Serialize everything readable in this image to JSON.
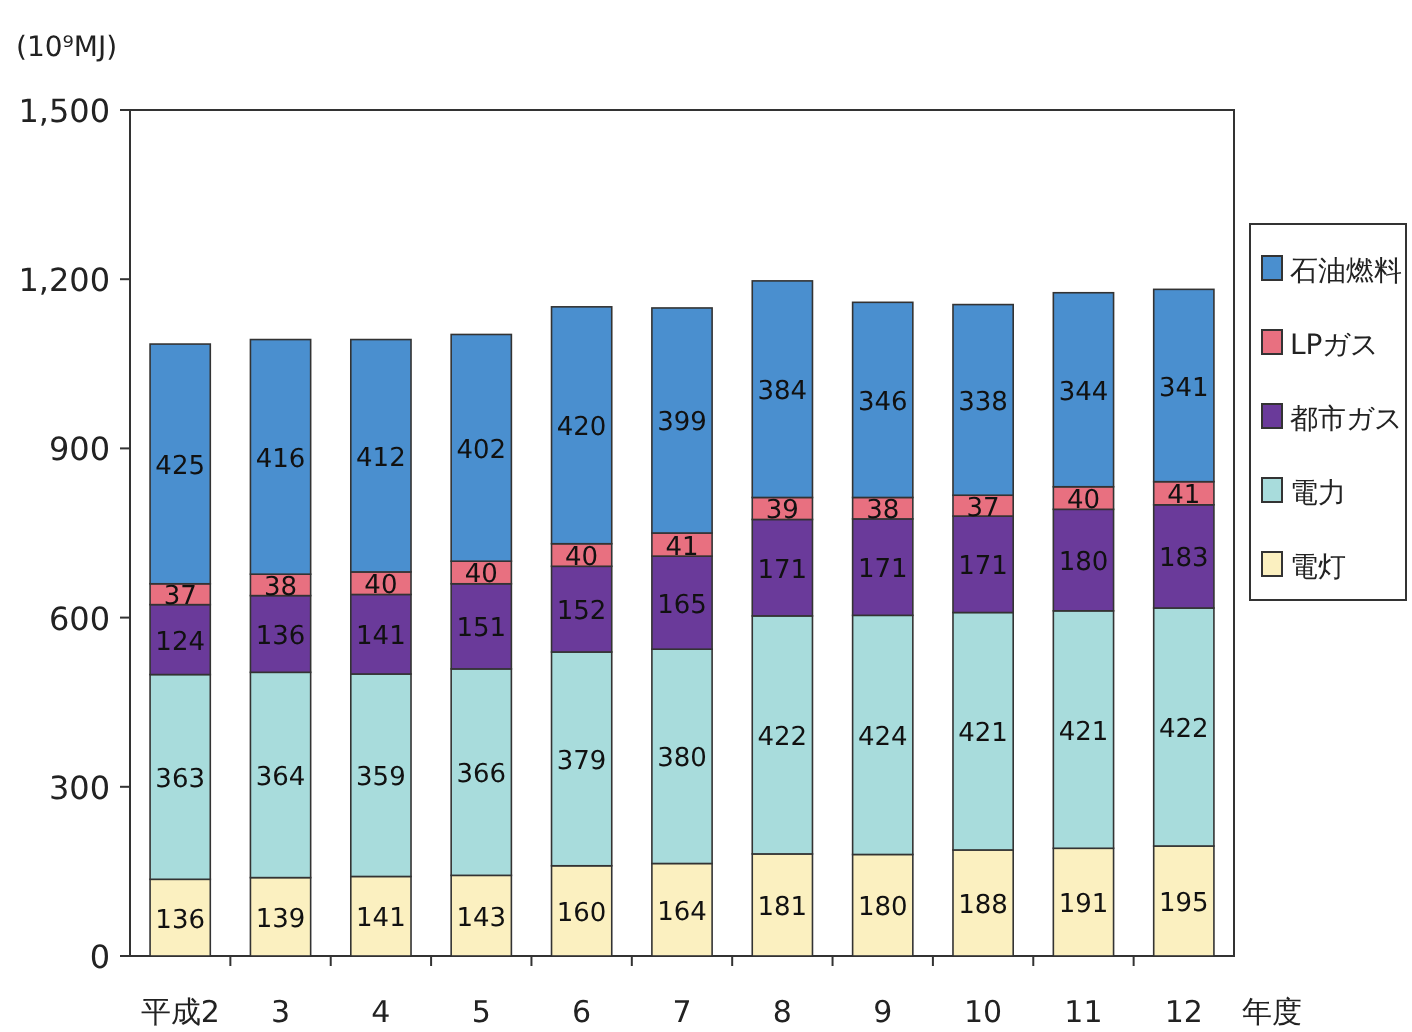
{
  "chart_data": {
    "type": "bar",
    "stacked": true,
    "ylabel": "(10⁹MJ)",
    "xlabel": "年度",
    "categories": [
      "平成2",
      "3",
      "4",
      "5",
      "6",
      "7",
      "8",
      "9",
      "10",
      "11",
      "12"
    ],
    "series": [
      {
        "name": "電灯",
        "color": "#fbf0c0",
        "values": [
          136,
          139,
          141,
          143,
          160,
          164,
          181,
          180,
          188,
          191,
          195
        ]
      },
      {
        "name": "電力",
        "color": "#a8dcdc",
        "values": [
          363,
          364,
          359,
          366,
          379,
          380,
          422,
          424,
          421,
          421,
          422
        ]
      },
      {
        "name": "都市ガス",
        "color": "#6a3a9a",
        "values": [
          124,
          136,
          141,
          151,
          152,
          165,
          171,
          171,
          171,
          180,
          183
        ]
      },
      {
        "name": "LPガス",
        "color": "#e87080",
        "values": [
          37,
          38,
          40,
          40,
          40,
          41,
          39,
          38,
          37,
          40,
          41
        ]
      },
      {
        "name": "石油燃料",
        "color": "#4a8fcf",
        "values": [
          425,
          416,
          412,
          402,
          420,
          399,
          384,
          346,
          338,
          344,
          341
        ]
      }
    ],
    "ylim": [
      0,
      1500
    ],
    "yticks": [
      0,
      300,
      600,
      900,
      {
        "value": 1200,
        "label": "1,200"
      },
      {
        "value": 1500,
        "label": "1,500"
      }
    ],
    "data_labels": true,
    "legend": "right",
    "grid": false
  }
}
